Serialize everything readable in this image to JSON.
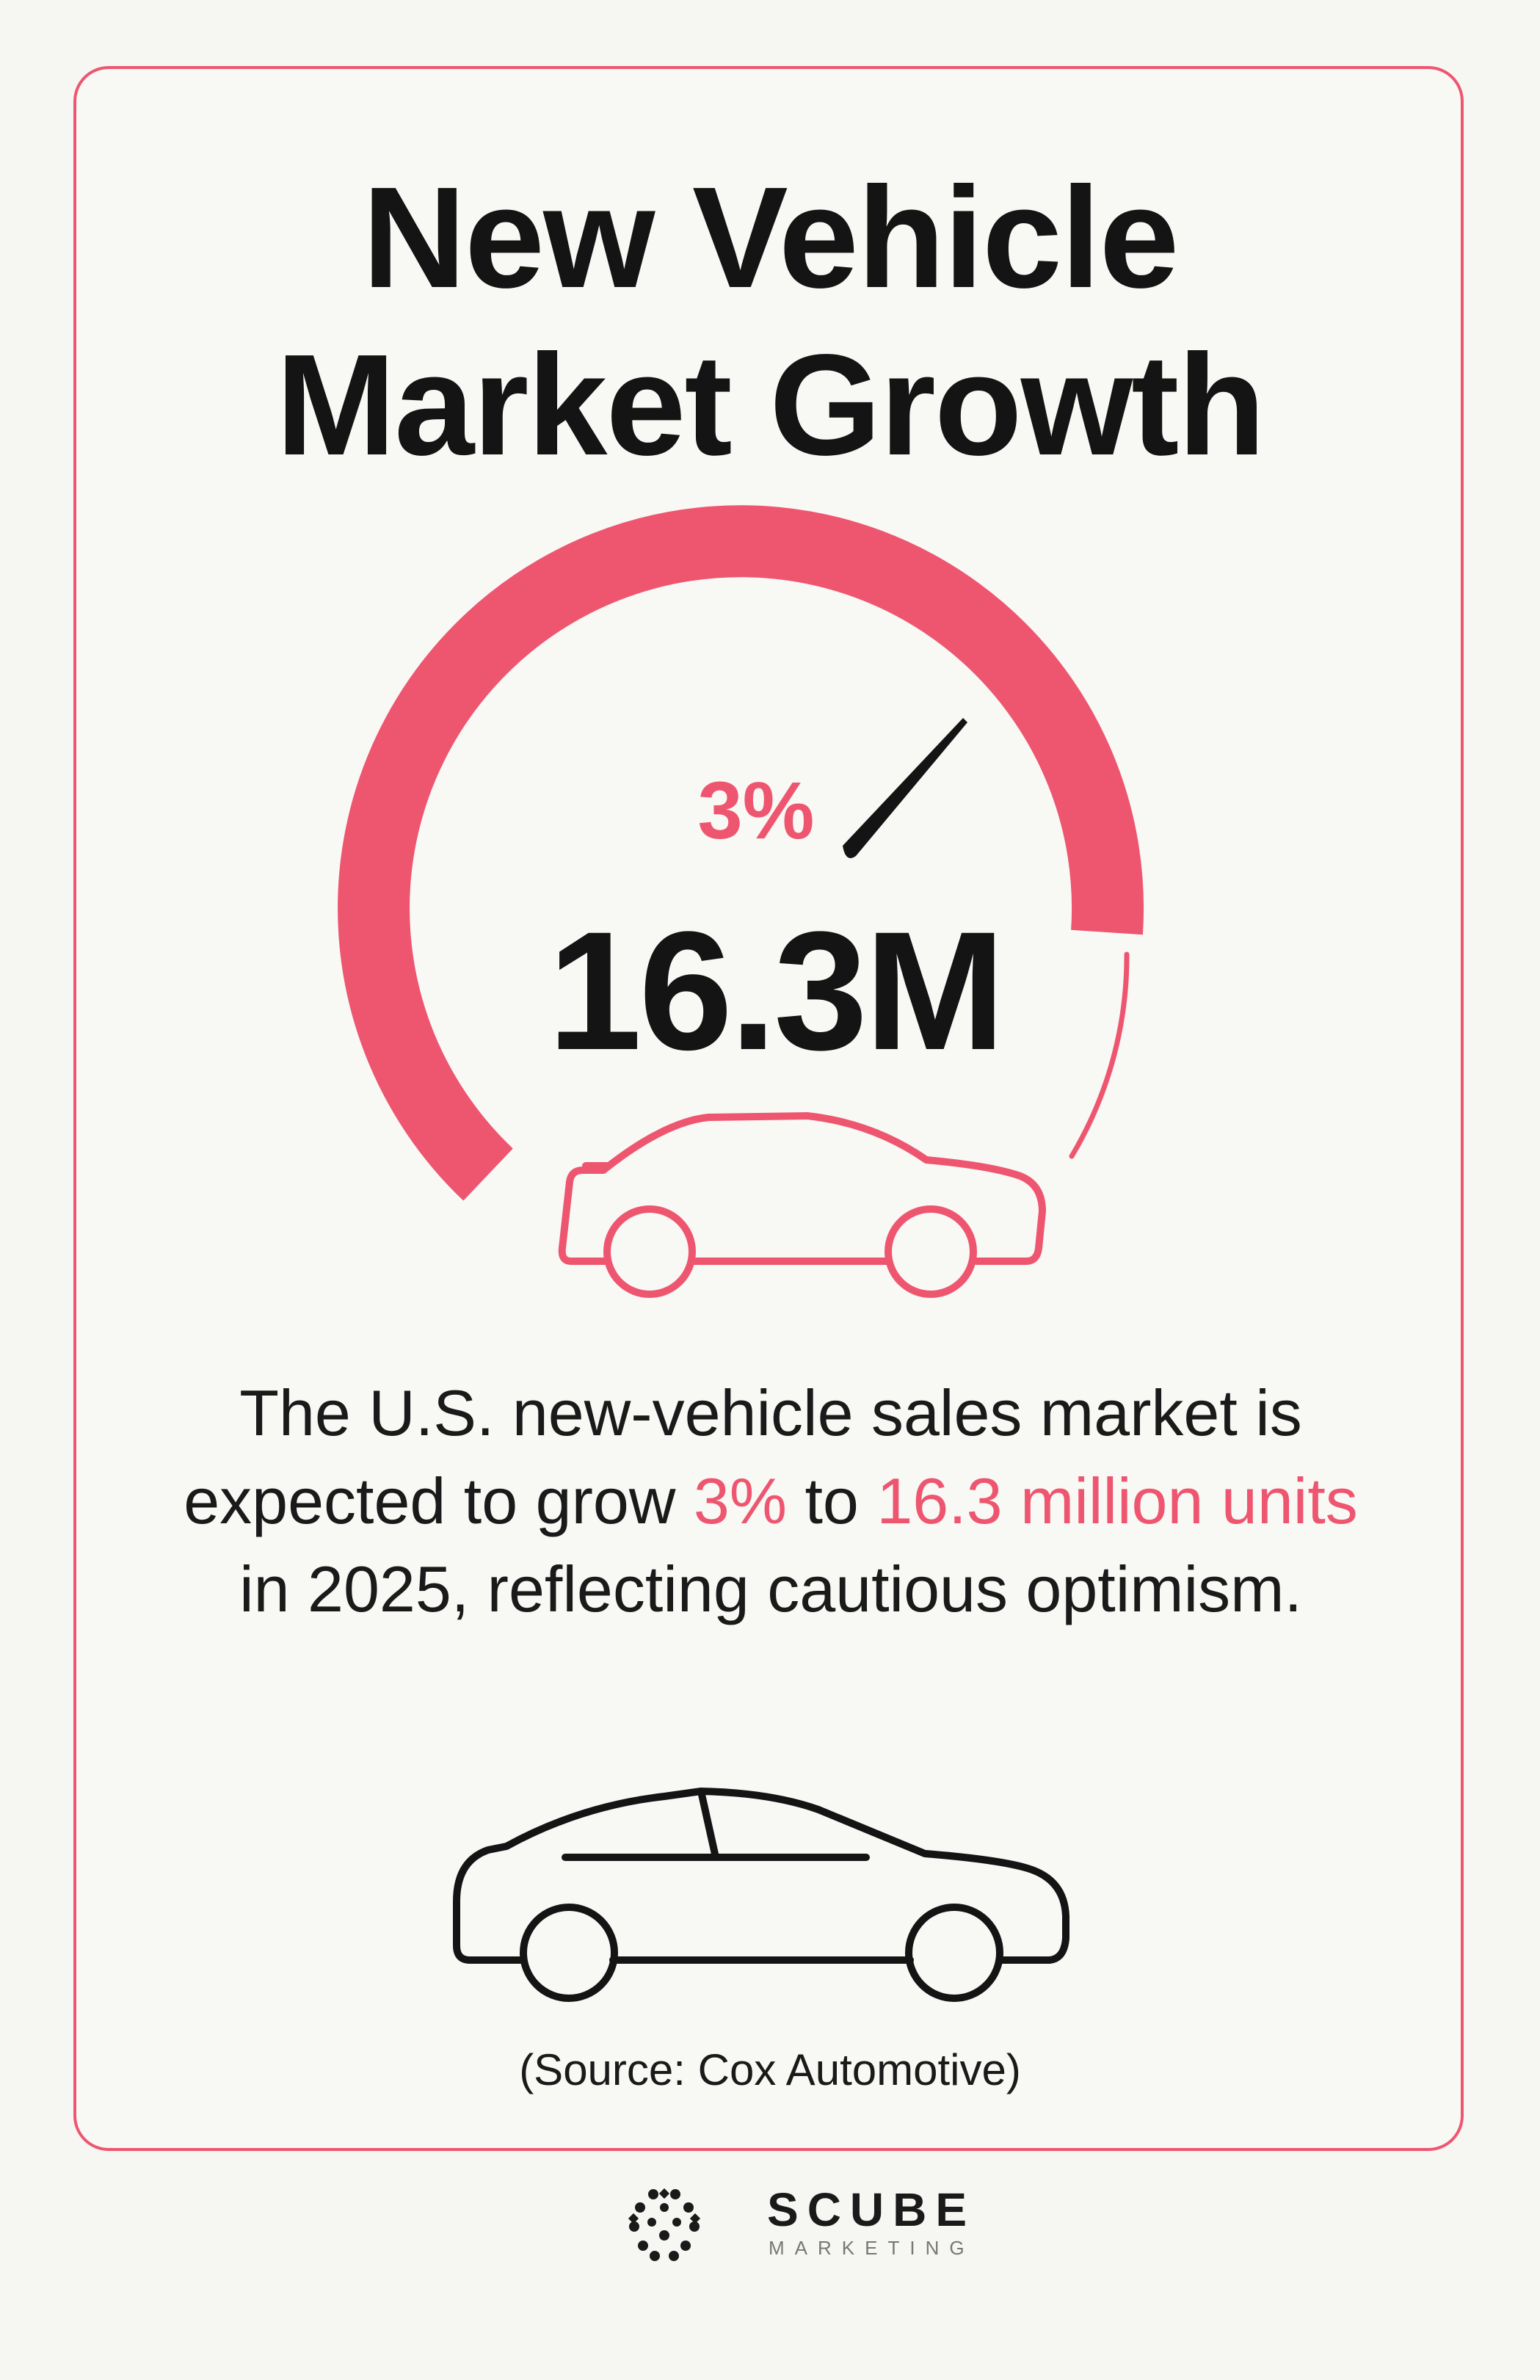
{
  "colors": {
    "accent": "#ee5670",
    "text": "#141414",
    "background": "#f6f6f3"
  },
  "title": {
    "line1": "New Vehicle",
    "line2": "Market Growth"
  },
  "gauge": {
    "percent_label": "3%",
    "value_label": "16.3M"
  },
  "description": {
    "part1": "The U.S. new-vehicle sales market is expected to grow ",
    "highlight1": "3%",
    "part2": " to ",
    "highlight2": "16.3 million units",
    "part3": " in 2025, reflecting cautious optimism."
  },
  "source": "(Source: Cox Automotive)",
  "brand": {
    "name": "SCUBE",
    "tagline": "MARKETING",
    "logo_icon": "dotted-cube-logo-icon"
  },
  "icons": {
    "gauge": "speedometer-icon",
    "needle": "gauge-needle-icon",
    "car_pink": "car-outline-icon",
    "car_black": "sedan-outline-icon"
  }
}
